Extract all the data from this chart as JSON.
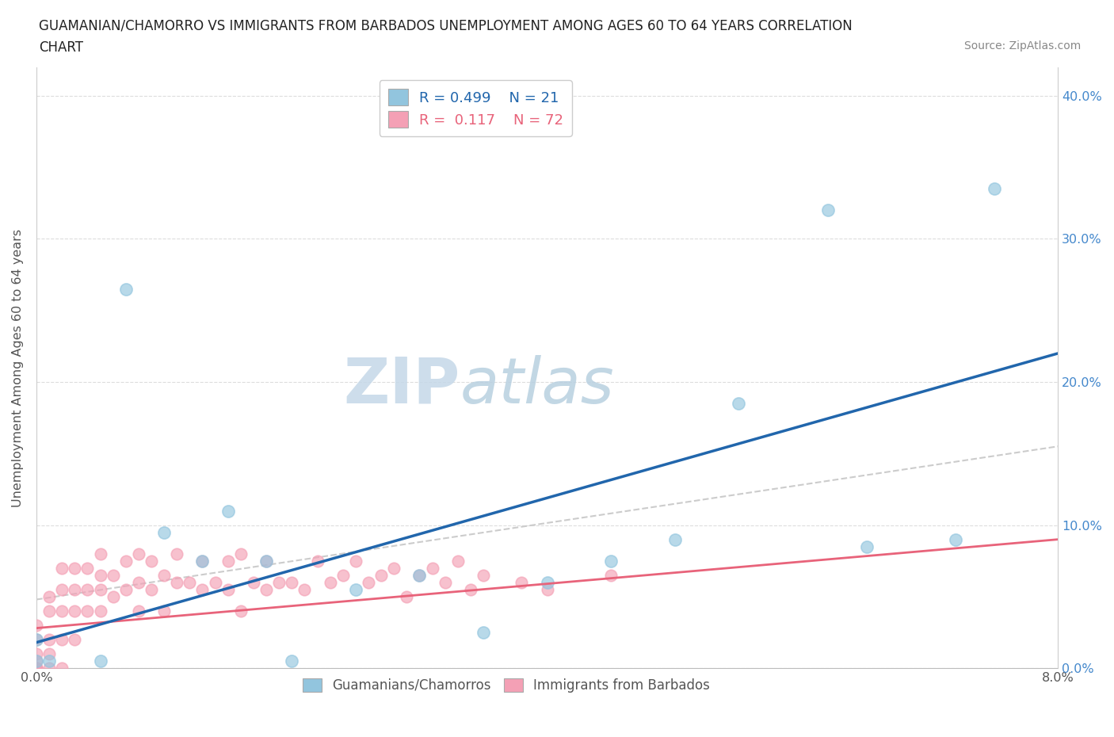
{
  "title_line1": "GUAMANIAN/CHAMORRO VS IMMIGRANTS FROM BARBADOS UNEMPLOYMENT AMONG AGES 60 TO 64 YEARS CORRELATION",
  "title_line2": "CHART",
  "source_text": "Source: ZipAtlas.com",
  "ylabel": "Unemployment Among Ages 60 to 64 years",
  "xlim": [
    0.0,
    0.08
  ],
  "ylim": [
    0.0,
    0.42
  ],
  "color_blue": "#92c5de",
  "color_pink": "#f4a0b5",
  "trendline_blue": "#2166ac",
  "trendline_pink": "#e8637a",
  "trendline_gray_color": "#cccccc",
  "watermark_color": "#d8e8f0",
  "guam_x": [
    0.0,
    0.0,
    0.001,
    0.005,
    0.007,
    0.01,
    0.013,
    0.015,
    0.018,
    0.02,
    0.025,
    0.03,
    0.035,
    0.04,
    0.045,
    0.05,
    0.055,
    0.062,
    0.065,
    0.072,
    0.075
  ],
  "guam_y": [
    0.02,
    0.005,
    0.005,
    0.005,
    0.265,
    0.095,
    0.075,
    0.11,
    0.075,
    0.005,
    0.055,
    0.065,
    0.025,
    0.06,
    0.075,
    0.09,
    0.185,
    0.32,
    0.085,
    0.09,
    0.335
  ],
  "barb_x": [
    0.0,
    0.0,
    0.0,
    0.0,
    0.0,
    0.0,
    0.0,
    0.001,
    0.001,
    0.001,
    0.001,
    0.001,
    0.002,
    0.002,
    0.002,
    0.002,
    0.002,
    0.003,
    0.003,
    0.003,
    0.003,
    0.004,
    0.004,
    0.004,
    0.005,
    0.005,
    0.005,
    0.005,
    0.006,
    0.006,
    0.007,
    0.007,
    0.008,
    0.008,
    0.008,
    0.009,
    0.009,
    0.01,
    0.01,
    0.011,
    0.011,
    0.012,
    0.013,
    0.013,
    0.014,
    0.015,
    0.015,
    0.016,
    0.016,
    0.017,
    0.018,
    0.018,
    0.019,
    0.02,
    0.021,
    0.022,
    0.023,
    0.024,
    0.025,
    0.026,
    0.027,
    0.028,
    0.029,
    0.03,
    0.031,
    0.032,
    0.033,
    0.034,
    0.035,
    0.038,
    0.04,
    0.045
  ],
  "barb_y": [
    0.0,
    0.0,
    0.0,
    0.005,
    0.01,
    0.02,
    0.03,
    0.0,
    0.01,
    0.02,
    0.04,
    0.05,
    0.0,
    0.02,
    0.04,
    0.055,
    0.07,
    0.02,
    0.04,
    0.055,
    0.07,
    0.04,
    0.055,
    0.07,
    0.04,
    0.055,
    0.065,
    0.08,
    0.05,
    0.065,
    0.055,
    0.075,
    0.04,
    0.06,
    0.08,
    0.055,
    0.075,
    0.04,
    0.065,
    0.06,
    0.08,
    0.06,
    0.055,
    0.075,
    0.06,
    0.055,
    0.075,
    0.04,
    0.08,
    0.06,
    0.055,
    0.075,
    0.06,
    0.06,
    0.055,
    0.075,
    0.06,
    0.065,
    0.075,
    0.06,
    0.065,
    0.07,
    0.05,
    0.065,
    0.07,
    0.06,
    0.075,
    0.055,
    0.065,
    0.06,
    0.055,
    0.065
  ],
  "blue_line_x0": 0.0,
  "blue_line_y0": 0.018,
  "blue_line_x1": 0.08,
  "blue_line_y1": 0.22,
  "pink_line_x0": 0.0,
  "pink_line_y0": 0.028,
  "pink_line_x1": 0.08,
  "pink_line_y1": 0.09,
  "gray_line_x0": 0.0,
  "gray_line_y0": 0.048,
  "gray_line_x1": 0.08,
  "gray_line_y1": 0.155
}
